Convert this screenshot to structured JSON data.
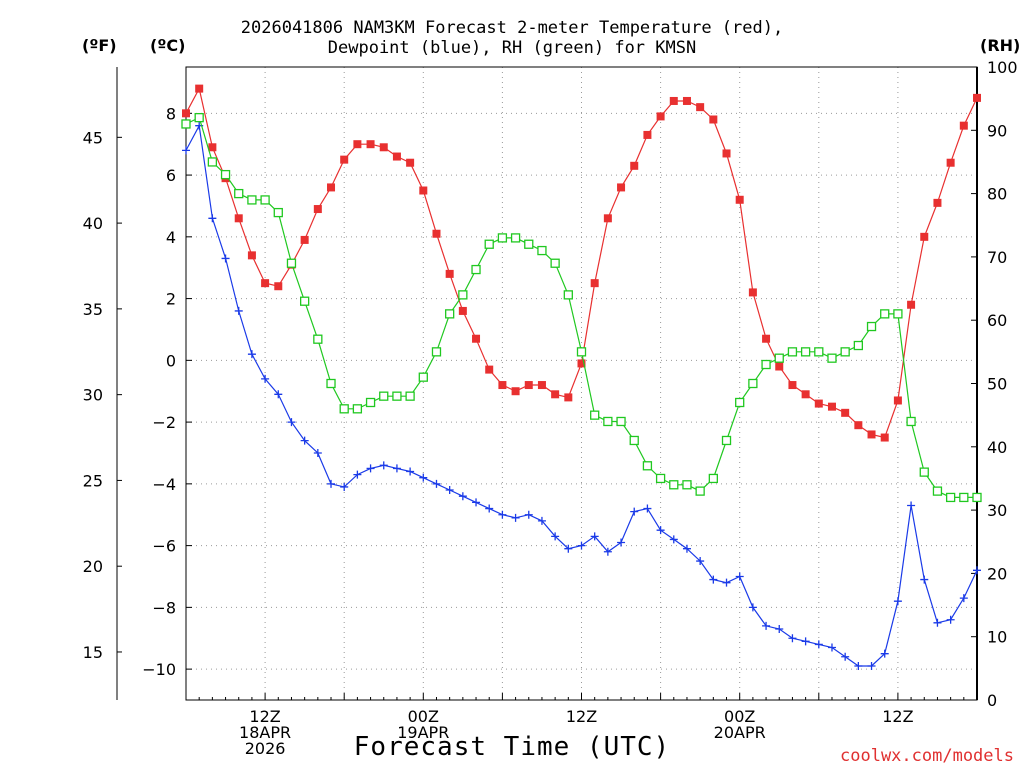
{
  "title": {
    "line1": "2026041806 NAM3KM Forecast 2-meter Temperature (red),",
    "line2": "Dewpoint (blue), RH (green) for KMSN"
  },
  "units": {
    "fahrenheit": "(ºF)",
    "celsius": "(ºC)",
    "rh": "(RH)"
  },
  "xlabel": "Forecast Time (UTC)",
  "credit": "coolwx.com/models",
  "colors": {
    "temperature": "#e83030",
    "dewpoint": "#1a3ae8",
    "rh": "#20c820",
    "grid": "#9a9a9a"
  },
  "chart_data": {
    "type": "line",
    "title": "2026041806 NAM3KM Forecast 2-meter Temperature (red), Dewpoint (blue), RH (green) for KMSN",
    "xlabel": "Forecast Time (UTC)",
    "x_unit": "forecast hours from 2026-04-18 06Z",
    "x": [
      0,
      1,
      2,
      3,
      4,
      5,
      6,
      7,
      8,
      9,
      10,
      11,
      12,
      13,
      14,
      15,
      16,
      17,
      18,
      19,
      20,
      21,
      22,
      23,
      24,
      25,
      26,
      27,
      28,
      29,
      30,
      31,
      32,
      33,
      34,
      35,
      36,
      37,
      38,
      39,
      40,
      41,
      42,
      43,
      44,
      45,
      46,
      47,
      48,
      49,
      50,
      51,
      52,
      53,
      54,
      55,
      56,
      57,
      58,
      59,
      60
    ],
    "xlim": [
      0,
      60
    ],
    "x_ticks": [
      {
        "hour": 6,
        "labels": [
          "12Z",
          "18APR",
          "2026"
        ]
      },
      {
        "hour": 18,
        "labels": [
          "00Z",
          "19APR"
        ]
      },
      {
        "hour": 30,
        "labels": [
          "12Z"
        ]
      },
      {
        "hour": 42,
        "labels": [
          "00Z",
          "20APR"
        ]
      },
      {
        "hour": 54,
        "labels": [
          "12Z"
        ]
      }
    ],
    "y_left_celsius": {
      "label": "(ºC)",
      "ylim": [
        -11,
        9.5
      ],
      "ticks": [
        8,
        6,
        4,
        2,
        0,
        -2,
        -4,
        -6,
        -8,
        -10
      ]
    },
    "y_left_fahrenheit": {
      "label": "(ºF)",
      "ticks": [
        45,
        40,
        35,
        30,
        25,
        20,
        15
      ]
    },
    "y_right": {
      "label": "(RH)",
      "ylim": [
        0,
        100
      ],
      "ticks": [
        100,
        90,
        80,
        70,
        60,
        50,
        40,
        30,
        20,
        10,
        0
      ]
    },
    "series": [
      {
        "name": "2-meter Temperature",
        "axis": "celsius",
        "color": "red",
        "marker": "filled-square",
        "values": [
          8.0,
          8.8,
          6.9,
          5.9,
          4.6,
          3.4,
          2.5,
          2.4,
          3.1,
          3.9,
          4.9,
          5.6,
          6.5,
          7.0,
          7.0,
          6.9,
          6.6,
          6.4,
          5.5,
          4.1,
          2.8,
          1.6,
          0.7,
          -0.3,
          -0.8,
          -1.0,
          -0.8,
          -0.8,
          -1.1,
          -1.2,
          -0.1,
          2.5,
          4.6,
          5.6,
          6.3,
          7.3,
          7.9,
          8.4,
          8.4,
          8.2,
          7.8,
          6.7,
          5.2,
          2.2,
          0.7,
          -0.2,
          -0.8,
          -1.1,
          -1.4,
          -1.5,
          -1.7,
          -2.1,
          -2.4,
          -2.5,
          -1.3,
          1.8,
          4.0,
          5.1,
          6.4,
          7.6,
          8.5
        ]
      },
      {
        "name": "Dewpoint",
        "axis": "celsius",
        "color": "blue",
        "marker": "plus",
        "values": [
          6.8,
          7.6,
          4.6,
          3.3,
          1.6,
          0.2,
          -0.6,
          -1.1,
          -2.0,
          -2.6,
          -3.0,
          -4.0,
          -4.1,
          -3.7,
          -3.5,
          -3.4,
          -3.5,
          -3.6,
          -3.8,
          -4.0,
          -4.2,
          -4.4,
          -4.6,
          -4.8,
          -5.0,
          -5.1,
          -5.0,
          -5.2,
          -5.7,
          -6.1,
          -6.0,
          -5.7,
          -6.2,
          -5.9,
          -4.9,
          -4.8,
          -5.5,
          -5.8,
          -6.1,
          -6.5,
          -7.1,
          -7.2,
          -7.0,
          -8.0,
          -8.6,
          -8.7,
          -9.0,
          -9.1,
          -9.2,
          -9.3,
          -9.6,
          -9.9,
          -9.9,
          -9.5,
          -7.8,
          -4.7,
          -7.1,
          -8.5,
          -8.4,
          -7.7,
          -6.8
        ]
      },
      {
        "name": "Relative Humidity",
        "axis": "rh",
        "color": "green",
        "marker": "open-square",
        "values": [
          91,
          92,
          85,
          83,
          80,
          79,
          79,
          77,
          69,
          63,
          57,
          50,
          46,
          46,
          47,
          48,
          48,
          48,
          51,
          55,
          61,
          64,
          68,
          72,
          73,
          73,
          72,
          71,
          69,
          64,
          55,
          45,
          44,
          44,
          41,
          37,
          35,
          34,
          34,
          33,
          35,
          41,
          47,
          50,
          53,
          54,
          55,
          55,
          55,
          54,
          55,
          56,
          59,
          61,
          61,
          44,
          36,
          33,
          32,
          32,
          32
        ]
      }
    ]
  }
}
